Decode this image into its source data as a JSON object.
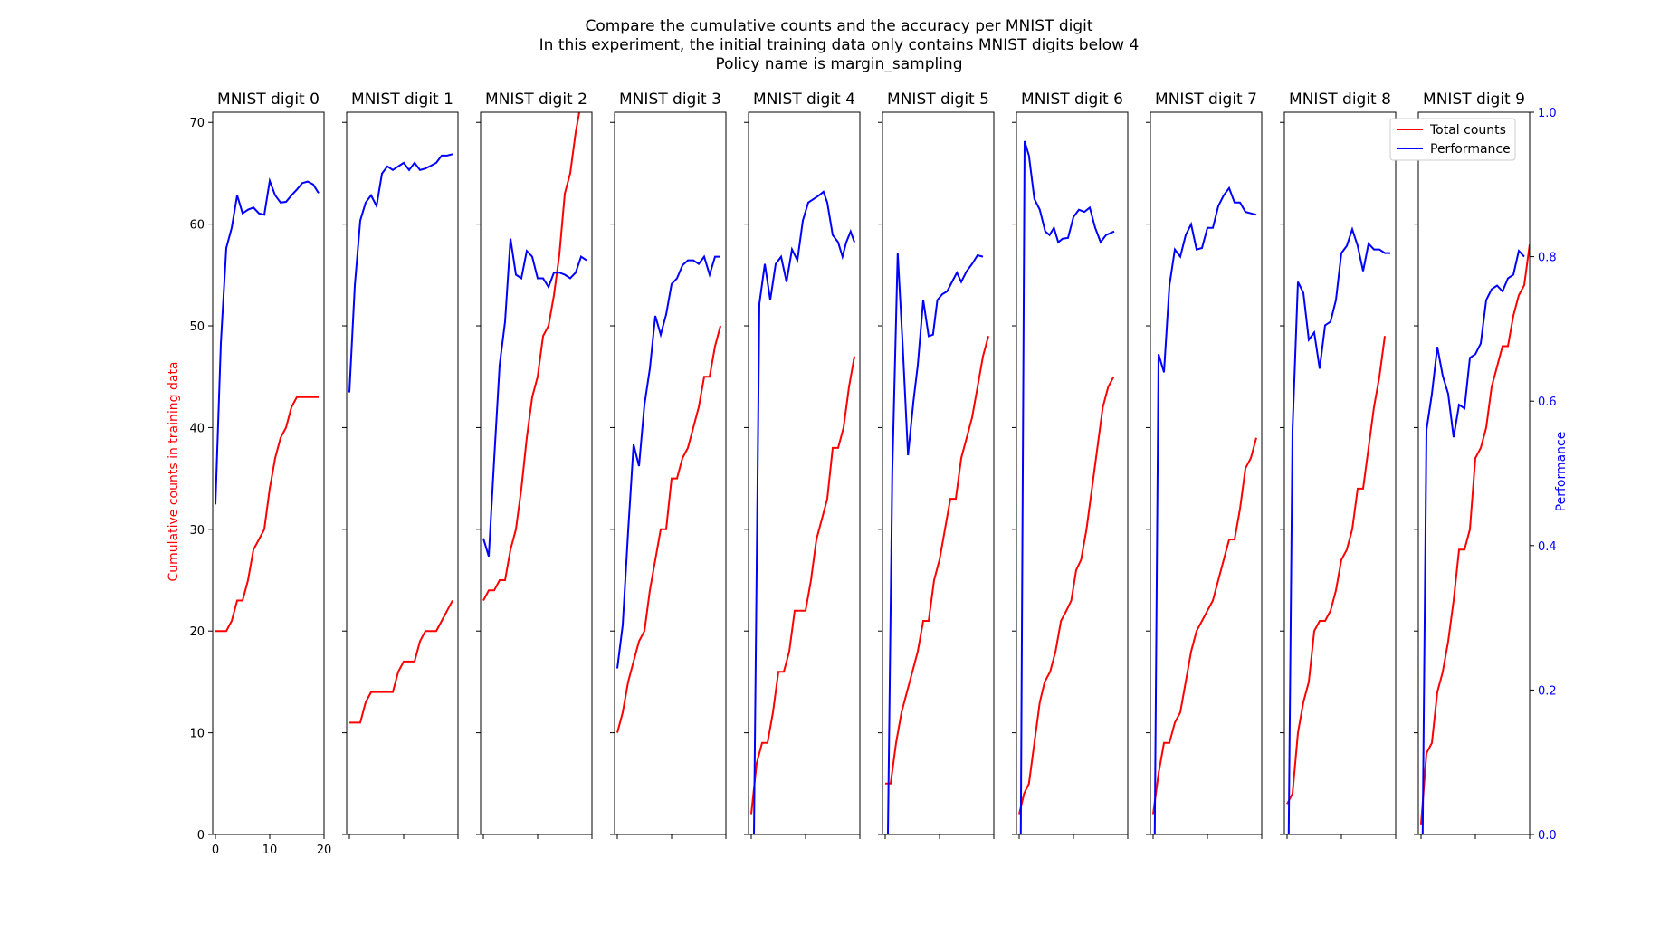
{
  "chart_data": {
    "type": "line",
    "title_lines": [
      "Compare the cumulative counts and the accuracy per MNIST digit",
      "In this experiment, the initial training data only contains MNIST digits below 4",
      "Policy name is margin_sampling"
    ],
    "ylabel_left": "Cumulative counts in training data",
    "ylabel_right": "Performance",
    "ylim_left": [
      0,
      71
    ],
    "ylim_right": [
      0,
      1
    ],
    "xlim": [
      -0.5,
      20
    ],
    "left_ticks": [
      0,
      10,
      20,
      30,
      40,
      50,
      60,
      70
    ],
    "right_ticks": [
      0.0,
      0.2,
      0.4,
      0.6,
      0.8,
      1.0
    ],
    "right_tick_labels": [
      "0.0",
      "0.2",
      "0.4",
      "0.6",
      "0.8",
      "1.0"
    ],
    "x_ticks": [
      0,
      10,
      20
    ],
    "x_tick_labels": [
      "0",
      "10",
      "20"
    ],
    "legend": {
      "position": "top-right",
      "entries": [
        "Total counts",
        "Performance"
      ]
    },
    "colors": {
      "counts": "#ff0000",
      "performance": "#0000ff"
    },
    "panels": [
      {
        "title": "MNIST digit 0",
        "counts": [
          20,
          20,
          20,
          21,
          23,
          23,
          25,
          28,
          29,
          30,
          34,
          37,
          39,
          40,
          42,
          43,
          43,
          43,
          43,
          43
        ],
        "performance": [
          0.457,
          0.68,
          0.812,
          0.84,
          0.885,
          0.86,
          0.865,
          0.868,
          0.86,
          0.858,
          0.905,
          0.885,
          0.875,
          0.876,
          0.885,
          0.893,
          0.902,
          0.904,
          0.9,
          0.888
        ]
      },
      {
        "title": "MNIST digit 1",
        "counts": [
          11,
          11,
          11,
          13,
          14,
          14,
          14,
          14,
          14,
          16,
          17,
          17,
          17,
          19,
          20,
          20,
          20,
          21,
          22,
          23
        ],
        "performance": [
          0.612,
          0.76,
          0.85,
          0.875,
          0.885,
          0.87,
          0.915,
          0.925,
          0.92,
          0.925,
          0.93,
          0.92,
          0.93,
          0.92,
          0.922,
          0.926,
          0.93,
          0.94,
          0.94,
          0.942
        ]
      },
      {
        "title": "MNIST digit 2",
        "counts": [
          23,
          24,
          24,
          25,
          25,
          28,
          30,
          34,
          39,
          43,
          45,
          49,
          50,
          53,
          57,
          63,
          65,
          69,
          72,
          73
        ],
        "performance": [
          0.41,
          0.385,
          0.52,
          0.65,
          0.71,
          0.825,
          0.775,
          0.77,
          0.808,
          0.8,
          0.77,
          0.77,
          0.758,
          0.778,
          0.778,
          0.775,
          0.77,
          0.778,
          0.8,
          0.795
        ]
      },
      {
        "title": "MNIST digit 3",
        "counts": [
          10,
          12,
          15,
          17,
          19,
          20,
          24,
          27,
          30,
          30,
          35,
          35,
          37,
          38,
          40,
          42,
          45,
          45,
          48,
          50
        ],
        "performance": [
          0.23,
          0.29,
          0.42,
          0.54,
          0.51,
          0.595,
          0.645,
          0.718,
          0.692,
          0.72,
          0.762,
          0.77,
          0.788,
          0.795,
          0.795,
          0.79,
          0.8,
          0.775,
          0.8,
          0.8
        ]
      },
      {
        "title": "MNIST digit 4",
        "counts": [
          2,
          7,
          9,
          9,
          12,
          16,
          16,
          18,
          22,
          22,
          22,
          25,
          29,
          31,
          33,
          38,
          38,
          40,
          44,
          47
        ],
        "performance": [
          0.0,
          0.0,
          0.735,
          0.79,
          0.74,
          0.79,
          0.8,
          0.765,
          0.81,
          0.795,
          0.85,
          0.875,
          0.88,
          0.885,
          0.89,
          0.875,
          0.83,
          0.82,
          0.8,
          0.82,
          0.835,
          0.82
        ],
        "performance_x": [
          0,
          0.5,
          1.5,
          2.5,
          3.5,
          4.5,
          5.5,
          6.5,
          7.5,
          8.5,
          9.5,
          10.5,
          11.5,
          12.5,
          13.3,
          14,
          15,
          16,
          16.8,
          17.5,
          18.3,
          19
        ]
      },
      {
        "title": "MNIST digit 5",
        "counts": [
          5,
          5,
          9,
          12,
          14,
          16,
          18,
          21,
          21,
          25,
          27,
          30,
          33,
          33,
          37,
          39,
          41,
          44,
          47,
          49
        ],
        "performance": [
          0.0,
          0.0,
          0.5,
          0.805,
          0.68,
          0.525,
          0.6,
          0.65,
          0.74,
          0.69,
          0.692,
          0.74,
          0.748,
          0.752,
          0.765,
          0.778,
          0.765,
          0.78,
          0.79,
          0.802,
          0.8
        ],
        "performance_x": [
          0,
          0.5,
          1.3,
          2.3,
          3.2,
          4.2,
          5.2,
          6,
          7,
          8,
          8.8,
          9.6,
          10.5,
          11.4,
          12.3,
          13.2,
          14,
          15,
          16,
          17,
          18
        ]
      },
      {
        "title": "MNIST digit 6",
        "counts": [
          2,
          4,
          5,
          9,
          13,
          15,
          16,
          18,
          21,
          22,
          23,
          26,
          27,
          30,
          34,
          38,
          42,
          44,
          45
        ],
        "counts_x": [
          0,
          0.9,
          1.8,
          2.8,
          3.8,
          4.7,
          5.7,
          6.7,
          7.7,
          8.7,
          9.6,
          10.5,
          11.4,
          12.4,
          13.4,
          14.4,
          15.4,
          16.4,
          17.4
        ],
        "performance": [
          0.0,
          0.0,
          0.96,
          0.94,
          0.88,
          0.865,
          0.835,
          0.83,
          0.84,
          0.82,
          0.825,
          0.826,
          0.855,
          0.865,
          0.862,
          0.868,
          0.84,
          0.82,
          0.83,
          0.835
        ],
        "performance_x": [
          0,
          0.3,
          1,
          1.8,
          2.8,
          3.8,
          4.8,
          5.6,
          6.4,
          7.2,
          8,
          9,
          10,
          11,
          12,
          13,
          14,
          15,
          16,
          17.5
        ]
      },
      {
        "title": "MNIST digit 7",
        "counts": [
          2,
          6,
          9,
          9,
          11,
          12,
          15,
          18,
          20,
          21,
          22,
          23,
          25,
          27,
          29,
          29,
          32,
          36,
          37,
          39
        ],
        "performance": [
          0.0,
          0.0,
          0.665,
          0.64,
          0.76,
          0.81,
          0.8,
          0.83,
          0.845,
          0.81,
          0.812,
          0.84,
          0.84,
          0.87,
          0.885,
          0.895,
          0.875,
          0.875,
          0.862,
          0.86,
          0.858
        ],
        "performance_x": [
          0,
          0.3,
          1,
          2,
          3,
          4,
          5,
          6,
          7,
          8,
          9,
          10,
          11,
          12,
          13,
          14,
          15,
          16,
          17,
          18,
          19
        ]
      },
      {
        "title": "MNIST digit 8",
        "counts": [
          3,
          4,
          10,
          13,
          15,
          20,
          21,
          21,
          22,
          24,
          27,
          28,
          30,
          34,
          34,
          38,
          42,
          45,
          49
        ],
        "counts_x": [
          0,
          1,
          2,
          3,
          4,
          5,
          6,
          7,
          8,
          9,
          10,
          11,
          12,
          13,
          14,
          15,
          16,
          17,
          18
        ],
        "performance": [
          0.0,
          0.0,
          0.56,
          0.765,
          0.75,
          0.685,
          0.695,
          0.645,
          0.705,
          0.71,
          0.74,
          0.805,
          0.815,
          0.838,
          0.815,
          0.78,
          0.818,
          0.81,
          0.81,
          0.805,
          0.805
        ],
        "performance_x": [
          0,
          0.3,
          1,
          2,
          3,
          4,
          5,
          6,
          7,
          8,
          9,
          10,
          11,
          12,
          13,
          14,
          15,
          16,
          17,
          18,
          19
        ]
      },
      {
        "title": "MNIST digit 9",
        "counts": [
          1,
          8,
          9,
          14,
          16,
          19,
          23,
          28,
          28,
          30,
          37,
          38,
          40,
          44,
          46,
          48,
          48,
          51,
          53,
          54,
          58
        ],
        "counts_x": [
          0,
          1,
          2,
          3,
          4,
          5,
          6,
          7,
          8,
          9,
          10,
          11,
          12,
          13,
          14,
          15,
          16,
          17,
          18,
          19,
          20
        ],
        "performance": [
          0.0,
          0.0,
          0.56,
          0.61,
          0.675,
          0.635,
          0.61,
          0.55,
          0.595,
          0.59,
          0.66,
          0.665,
          0.68,
          0.74,
          0.755,
          0.76,
          0.752,
          0.77,
          0.775,
          0.808,
          0.8
        ],
        "performance_x": [
          0,
          0.3,
          1,
          2,
          3,
          4,
          5,
          6,
          7,
          8,
          9,
          10,
          11,
          12,
          13,
          14,
          15,
          16,
          17,
          18,
          19
        ]
      }
    ]
  }
}
